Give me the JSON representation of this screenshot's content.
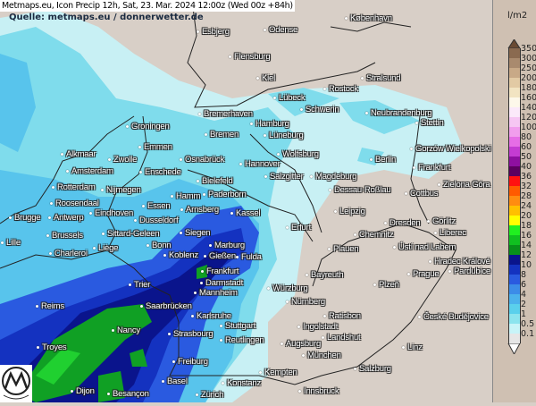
{
  "title": "Metmaps.eu, Icon Precip 12h, Sat, 23. Mar. 2024 12:00z (Wed 00z +84h)",
  "source": "Quelle: metmaps.eu / donnerwetter.de",
  "logo_text": "METMAPS",
  "legend": {
    "unit": "l/m2",
    "values": [
      "350",
      "300",
      "250",
      "200",
      "180",
      "160",
      "140",
      "120",
      "100",
      "80",
      "60",
      "50",
      "40",
      "36",
      "32",
      "28",
      "24",
      "20",
      "18",
      "16",
      "14",
      "12",
      "10",
      "8",
      "6",
      "4",
      "2",
      "1",
      "0.5",
      "0.1"
    ],
    "colors": [
      "#8a6a50",
      "#a98a6e",
      "#c8a987",
      "#e2caa4",
      "#f2e4c2",
      "#fdf8ea",
      "#fbe9fa",
      "#f6c6f3",
      "#f19ded",
      "#e66de6",
      "#c43cd2",
      "#8e10a0",
      "#5c005f",
      "#ff1010",
      "#ff5a00",
      "#ff8c10",
      "#ffc000",
      "#ffff00",
      "#20f020",
      "#10c020",
      "#08901a",
      "#0a148c",
      "#1432c0",
      "#2a5ae0",
      "#3c8ce8",
      "#4cb2ec",
      "#5ad0ec",
      "#8ce4ee",
      "#c8f4f8",
      "#e6e6e6"
    ]
  },
  "map_colors": {
    "land": "#d8cfc7",
    "light": "#c8f0f4",
    "cyan": "#7fdcec",
    "sky": "#58c4ec",
    "mid": "#3c8ce8",
    "blue": "#2a5ae0",
    "dark": "#1432c0",
    "navy": "#0a148c",
    "green": "#10a024",
    "lgreen": "#20d030"
  },
  "cities": [
    "København",
    "Esbjerg",
    "Odense",
    "Flensburg",
    "Kiel",
    "Stralsund",
    "Rostock",
    "Lübeck",
    "Schwerin",
    "Bremerhaven",
    "Hamburg",
    "Neubrandenburg",
    "Stettin",
    "Groningen",
    "Lüneburg",
    "Bremen",
    "Emmen",
    "Gorzów Wielkopolski",
    "Alkmaar",
    "Berlin",
    "Zwolle",
    "Hannover",
    "Wolfsburg",
    "Amsterdam",
    "Frankfurt",
    "Enschede",
    "Osnabrück",
    "Salzgitter",
    "Magdeburg",
    "Bielefeld",
    "Zielona Góra",
    "Rotterdam",
    "Nijmegen",
    "Dessau-Roßlau",
    "Cottbus",
    "Hamm",
    "Paderborn",
    "Roosendaal",
    "Eindhoven",
    "Essen",
    "Arnsberg",
    "Kassel",
    "Dusseldorf",
    "Leipzig",
    "Brugge",
    "Antwerp",
    "Erfurt",
    "Görlitz",
    "Dresden",
    "Sittard-Geleen",
    "Siegen",
    "Marburg",
    "Brussels",
    "Chemnitz",
    "Ústí nad Labem",
    "Liberec",
    "Bonn",
    "Lille",
    "Liège",
    "Gießen",
    "Fulda",
    "Plauen",
    "Charleroi",
    "Koblenz",
    "Hradec Králové",
    "Frankfurt",
    "Pardubice",
    "Prague",
    "Bayreuth",
    "Darmstadt",
    "Würzburg",
    "Trier",
    "Plzeň",
    "Mannheim",
    "Nürnberg",
    "Reims",
    "Saarbrücken",
    "Karlsruhe",
    "Ratisbon",
    "České Budějovice",
    "Stuttgart",
    "Ingolstadt",
    "Nancy",
    "Landshut",
    "Strasbourg",
    "Reutlingen",
    "Augsburg",
    "Linz",
    "Troyes",
    "München",
    "Freiburg",
    "Salzburg",
    "Kempten",
    "Konstanz",
    "Basel",
    "Zürich",
    "Innsbruck",
    "Dijon",
    "Besançon"
  ]
}
